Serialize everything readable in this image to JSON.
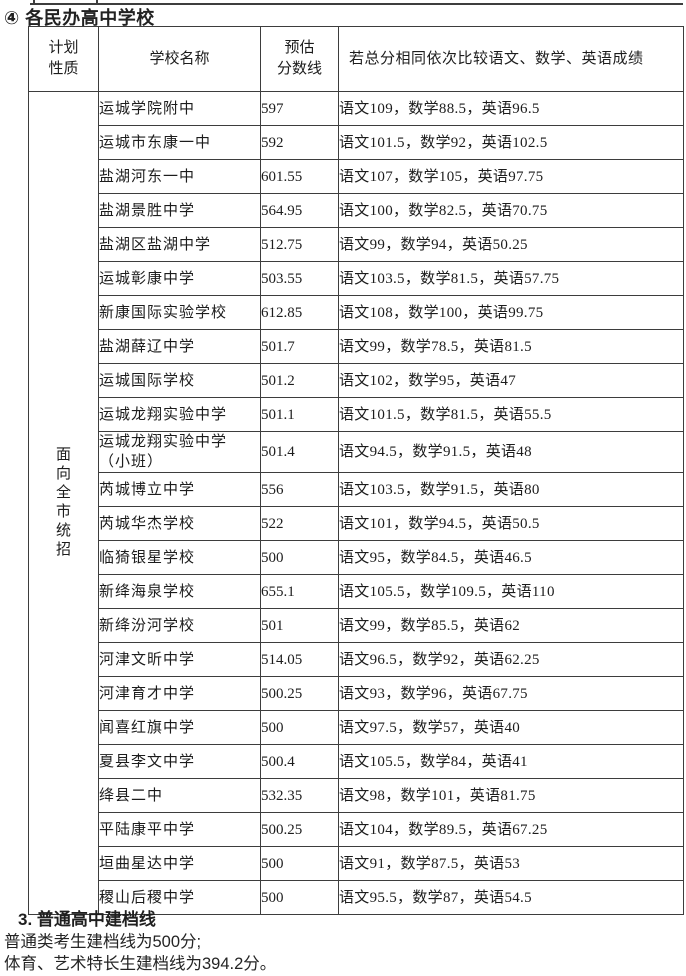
{
  "page": {
    "title": "④ 各民办高中学校",
    "footer": {
      "heading": "3. 普通高中建档线",
      "line1": "普通类考生建档线为500分;",
      "line2": "体育、艺术特长生建档线为394.2分。"
    }
  },
  "table": {
    "header": {
      "plan_line1": "计划",
      "plan_line2": "性质",
      "school": "学校名称",
      "score_line1": "预估",
      "score_line2": "分数线",
      "tiebreak": "若总分相同依次比较语文、数学、英语成绩"
    },
    "plan_type": "面向全市统招",
    "rows": [
      {
        "school": "运城学院附中",
        "score": "597",
        "tiebreak": "语文109，数学88.5，英语96.5"
      },
      {
        "school": "运城市东康一中",
        "score": "592",
        "tiebreak": "语文101.5，数学92，英语102.5"
      },
      {
        "school": "盐湖河东一中",
        "score": "601.55",
        "tiebreak": "语文107，数学105，英语97.75"
      },
      {
        "school": "盐湖景胜中学",
        "score": "564.95",
        "tiebreak": "语文100，数学82.5，英语70.75"
      },
      {
        "school": "盐湖区盐湖中学",
        "score": "512.75",
        "tiebreak": "语文99，数学94，英语50.25"
      },
      {
        "school": "运城彰康中学",
        "score": "503.55",
        "tiebreak": "语文103.5，数学81.5，英语57.75"
      },
      {
        "school": "新康国际实验学校",
        "score": "612.85",
        "tiebreak": "语文108，数学100，英语99.75"
      },
      {
        "school": "盐湖薛辽中学",
        "score": "501.7",
        "tiebreak": "语文99，数学78.5，英语81.5"
      },
      {
        "school": "运城国际学校",
        "score": "501.2",
        "tiebreak": "语文102，数学95，英语47"
      },
      {
        "school": "运城龙翔实验中学",
        "score": "501.1",
        "tiebreak": "语文101.5，数学81.5，英语55.5"
      },
      {
        "school": "运城龙翔实验中学\n（小班）",
        "score": "501.4",
        "tiebreak": "语文94.5，数学91.5，英语48"
      },
      {
        "school": "芮城博立中学",
        "score": "556",
        "tiebreak": "语文103.5，数学91.5，英语80"
      },
      {
        "school": "芮城华杰学校",
        "score": "522",
        "tiebreak": "语文101，数学94.5，英语50.5"
      },
      {
        "school": "临猗银星学校",
        "score": "500",
        "tiebreak": "语文95，数学84.5，英语46.5"
      },
      {
        "school": "新绛海泉学校",
        "score": "655.1",
        "tiebreak": "语文105.5，数学109.5，英语110"
      },
      {
        "school": "新绛汾河学校",
        "score": "501",
        "tiebreak": "语文99，数学85.5，英语62"
      },
      {
        "school": "河津文昕中学",
        "score": "514.05",
        "tiebreak": "语文96.5，数学92，英语62.25"
      },
      {
        "school": "河津育才中学",
        "score": "500.25",
        "tiebreak": "语文93，数学96，英语67.75"
      },
      {
        "school": "闻喜红旗中学",
        "score": "500",
        "tiebreak": "语文97.5，数学57，英语40"
      },
      {
        "school": "夏县李文中学",
        "score": "500.4",
        "tiebreak": "语文105.5，数学84，英语41"
      },
      {
        "school": "绛县二中",
        "score": "532.35",
        "tiebreak": "语文98，数学101，英语81.75"
      },
      {
        "school": "平陆康平中学",
        "score": "500.25",
        "tiebreak": "语文104，数学89.5，英语67.25"
      },
      {
        "school": "垣曲星达中学",
        "score": "500",
        "tiebreak": "语文91，数学87.5，英语53"
      },
      {
        "school": "稷山后稷中学",
        "score": "500",
        "tiebreak": "语文95.5，数学87，英语54.5"
      }
    ]
  }
}
